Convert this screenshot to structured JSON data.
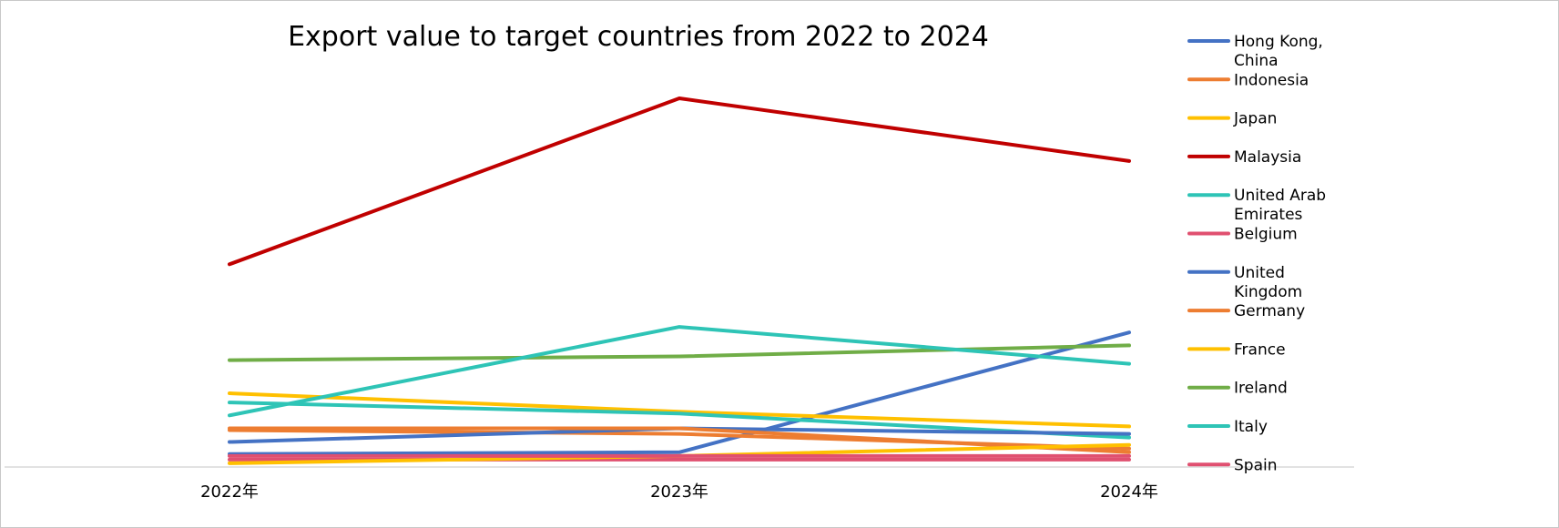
{
  "chart_data": {
    "type": "line",
    "title": "Export value to target countries from 2022 to 2024",
    "categories": [
      "2022年",
      "2023年",
      "2024年"
    ],
    "grid": false,
    "legend_position": "right",
    "ylim": [
      0,
      100
    ],
    "series": [
      {
        "name": "Hong Kong, China",
        "color": "#4472C4",
        "values": [
          3.5,
          4.0,
          36.5
        ]
      },
      {
        "name": "Indonesia",
        "color": "#ED7D31",
        "values": [
          10.0,
          9.0,
          5.0
        ]
      },
      {
        "name": "Japan",
        "color": "#FFC000",
        "values": [
          20.0,
          15.0,
          11.0
        ]
      },
      {
        "name": "Malaysia",
        "color": "#C00000",
        "values": [
          55.0,
          100.0,
          83.0
        ]
      },
      {
        "name": "United Arab Emirates",
        "color": "#2EC4B6",
        "values": [
          17.5,
          14.5,
          8.0
        ]
      },
      {
        "name": "Belgium",
        "color": "#E05070",
        "values": [
          2.0,
          2.0,
          2.0
        ]
      },
      {
        "name": "United Kingdom",
        "color": "#4472C4",
        "values": [
          6.8,
          10.5,
          9.0
        ]
      },
      {
        "name": "Germany",
        "color": "#ED7D31",
        "values": [
          10.5,
          10.5,
          4.0
        ]
      },
      {
        "name": "France",
        "color": "#FFC000",
        "values": [
          1.0,
          3.0,
          6.0
        ]
      },
      {
        "name": "Ireland",
        "color": "#70AD47",
        "values": [
          29.0,
          30.0,
          33.0
        ]
      },
      {
        "name": "Italy",
        "color": "#2EC4B6",
        "values": [
          14.0,
          38.0,
          28.0
        ]
      },
      {
        "name": "Spain",
        "color": "#E05070",
        "values": [
          3.0,
          3.0,
          3.0
        ]
      }
    ]
  }
}
